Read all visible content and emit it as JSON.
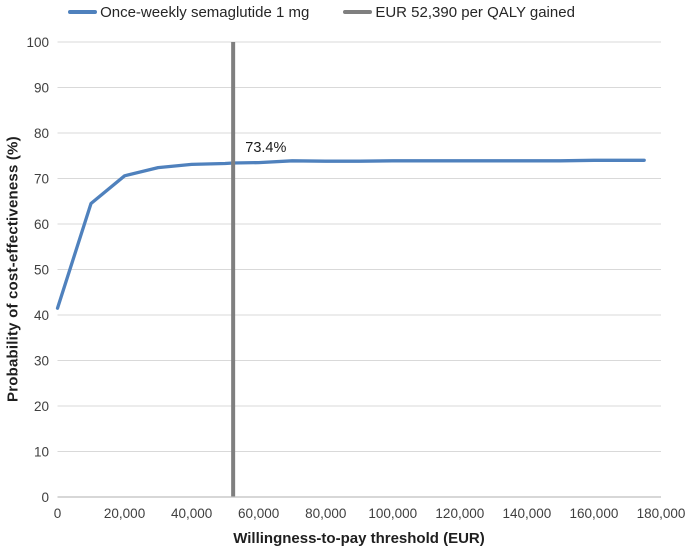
{
  "chart_data": {
    "type": "line",
    "title": "",
    "xlabel": "Willingness-to-pay threshold (EUR)",
    "ylabel": "Probability of cost-effectiveness (%)",
    "xlim": [
      0,
      180000
    ],
    "ylim": [
      0,
      100
    ],
    "grid": "horizontal",
    "legend_position": "top",
    "x_ticks": [
      0,
      20000,
      40000,
      60000,
      80000,
      100000,
      120000,
      140000,
      160000,
      180000
    ],
    "x_tick_labels": [
      "0",
      "20,000",
      "40,000",
      "60,000",
      "80,000",
      "100,000",
      "120,000",
      "140,000",
      "160,000",
      "180,000"
    ],
    "y_ticks": [
      0,
      10,
      20,
      30,
      40,
      50,
      60,
      70,
      80,
      90,
      100
    ],
    "annotation": {
      "text": "73.4%",
      "x": 56000,
      "y": 75.8
    },
    "threshold_line": {
      "x": 52390,
      "label": "EUR 52,390 per QALY gained",
      "color": "#7F7F7F"
    },
    "series": [
      {
        "name": "Once-weekly semaglutide 1 mg",
        "color": "#4F81BD",
        "x": [
          0,
          10000,
          20000,
          30000,
          40000,
          50000,
          52390,
          60000,
          70000,
          80000,
          90000,
          100000,
          110000,
          120000,
          130000,
          140000,
          150000,
          160000,
          170000,
          175000
        ],
        "y": [
          41.5,
          64.5,
          70.6,
          72.4,
          73.1,
          73.3,
          73.4,
          73.5,
          73.9,
          73.8,
          73.8,
          73.9,
          73.9,
          73.9,
          73.9,
          73.9,
          73.9,
          74.0,
          74.0,
          74.0
        ]
      }
    ],
    "colors": {
      "gridline": "#D9D9D9",
      "axis_line": "#BFBFBF",
      "tick_text": "#3F3F3F",
      "title_text": "#1F1F1F",
      "annotation_text": "#1A1A1A"
    }
  }
}
